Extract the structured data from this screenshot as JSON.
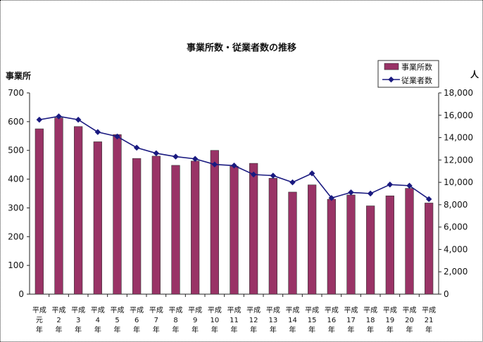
{
  "chart_data": {
    "type": "bar",
    "title": "事業所数・従業者数の推移",
    "ylabel_left": "事業所",
    "ylabel_right": "人",
    "ylim_left": [
      0,
      700
    ],
    "yticks_left": [
      "0",
      "100",
      "200",
      "300",
      "400",
      "500",
      "600",
      "700"
    ],
    "ylim_right": [
      0,
      18000
    ],
    "yticks_right": [
      "0",
      "2,000",
      "4,000",
      "6,000",
      "8,000",
      "10,000",
      "12,000",
      "14,000",
      "16,000",
      "18,000"
    ],
    "categories": [
      [
        "平成",
        "元",
        "年"
      ],
      [
        "平成",
        "2",
        "年"
      ],
      [
        "平成",
        "3",
        "年"
      ],
      [
        "平成",
        "4",
        "年"
      ],
      [
        "平成",
        "5",
        "年"
      ],
      [
        "平成",
        "6",
        "年"
      ],
      [
        "平成",
        "7",
        "年"
      ],
      [
        "平成",
        "8",
        "年"
      ],
      [
        "平成",
        "9",
        "年"
      ],
      [
        "平成",
        "10",
        "年"
      ],
      [
        "平成",
        "11",
        "年"
      ],
      [
        "平成",
        "12",
        "年"
      ],
      [
        "平成",
        "13",
        "年"
      ],
      [
        "平成",
        "14",
        "年"
      ],
      [
        "平成",
        "15",
        "年"
      ],
      [
        "平成",
        "16",
        "年"
      ],
      [
        "平成",
        "17",
        "年"
      ],
      [
        "平成",
        "18",
        "年"
      ],
      [
        "平成",
        "19",
        "年"
      ],
      [
        "平成",
        "20",
        "年"
      ],
      [
        "平成",
        "21",
        "年"
      ]
    ],
    "series": [
      {
        "name": "事業所数",
        "kind": "bar",
        "axis": "left",
        "color": "#993366",
        "values": [
          575,
          613,
          583,
          530,
          555,
          472,
          480,
          448,
          463,
          500,
          445,
          455,
          403,
          355,
          380,
          330,
          345,
          307,
          342,
          368,
          317
        ]
      },
      {
        "name": "従業者数",
        "kind": "line",
        "axis": "right",
        "color": "#1a1a80",
        "values": [
          15600,
          15900,
          15600,
          14500,
          14100,
          13100,
          12600,
          12300,
          12100,
          11600,
          11500,
          10700,
          10600,
          10000,
          10800,
          8600,
          9100,
          9000,
          9800,
          9700,
          8500
        ]
      }
    ],
    "grid": false,
    "legend_position": "top-right"
  }
}
